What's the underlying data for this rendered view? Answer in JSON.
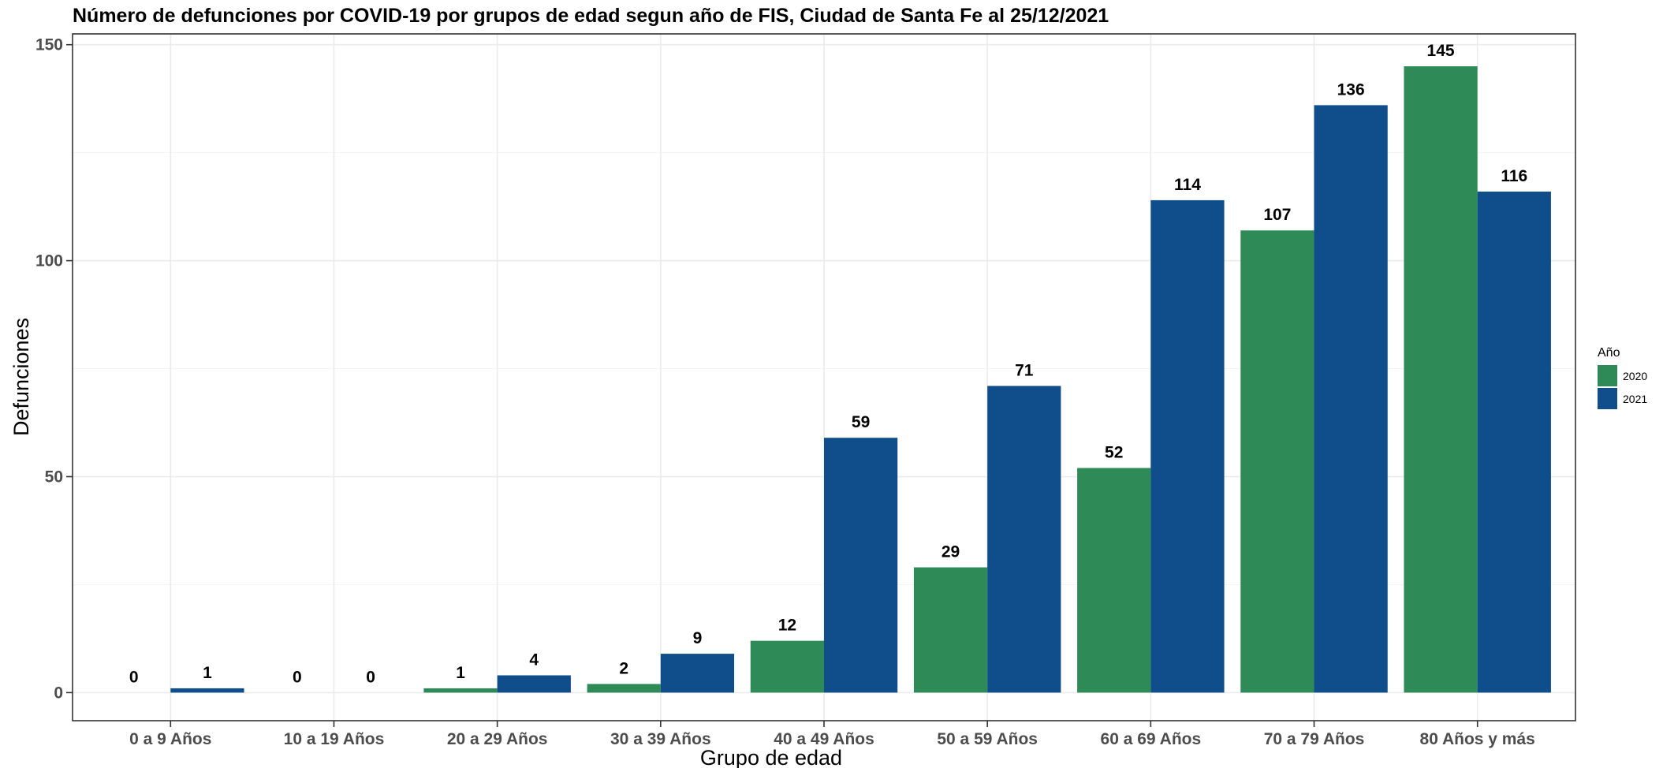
{
  "chart_data": {
    "type": "bar",
    "title": "Número de defunciones por COVID-19 por grupos de edad segun año de FIS, Ciudad de Santa Fe al 25/12/2021",
    "xlabel": "Grupo de edad",
    "ylabel": "Defunciones",
    "categories": [
      "0 a 9 Años",
      "10 a 19 Años",
      "20 a 29 Años",
      "30 a 39 Años",
      "40 a 49 Años",
      "50 a 59 Años",
      "60 a 69 Años",
      "70 a 79 Años",
      "80 Años y más"
    ],
    "series": [
      {
        "name": "2020",
        "color": "#2e8b57",
        "values": [
          0,
          0,
          1,
          2,
          12,
          29,
          52,
          107,
          145
        ]
      },
      {
        "name": "2021",
        "color": "#104e8b",
        "values": [
          1,
          0,
          4,
          9,
          59,
          71,
          114,
          136,
          116
        ]
      }
    ],
    "ylim": [
      -6.5,
      152.5
    ],
    "yticks": [
      0,
      50,
      100,
      150
    ],
    "grid": true,
    "legend_title": "Año",
    "legend_position": "right"
  }
}
